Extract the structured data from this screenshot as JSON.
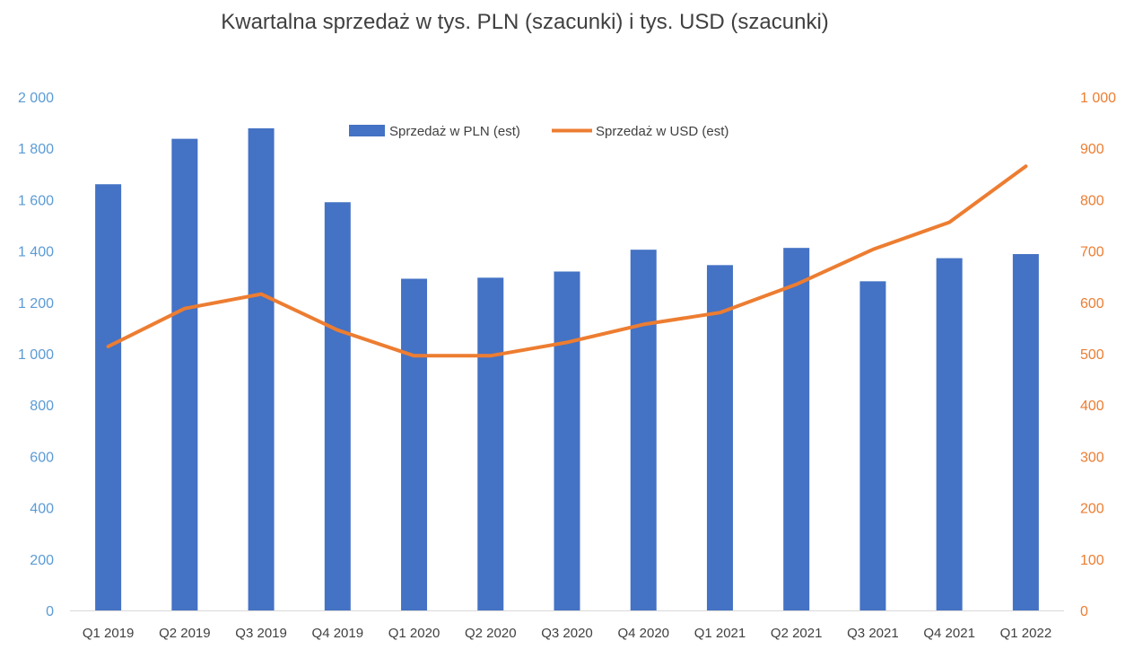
{
  "chart_data": {
    "type": "bar",
    "title": "Kwartalna sprzedaż w tys. PLN (szacunki) i tys. USD (szacunki)",
    "categories": [
      "Q1 2019",
      "Q2 2019",
      "Q3 2019",
      "Q4 2019",
      "Q1 2020",
      "Q2 2020",
      "Q3 2020",
      "Q4 2020",
      "Q1 2021",
      "Q2 2021",
      "Q3 2021",
      "Q4 2021",
      "Q1 2022"
    ],
    "series": [
      {
        "name": "Sprzedaż w PLN (est)",
        "type": "bar",
        "axis": "left",
        "color": "#4472c4",
        "values": [
          1660,
          1837,
          1878,
          1590,
          1292,
          1296,
          1320,
          1405,
          1345,
          1412,
          1282,
          1372,
          1388
        ]
      },
      {
        "name": "Sprzedaż w USD (est)",
        "type": "line",
        "axis": "right",
        "color": "#ed7d31",
        "values": [
          514,
          588,
          616,
          546,
          496,
          496,
          522,
          557,
          580,
          635,
          703,
          756,
          865
        ]
      }
    ],
    "y_left": {
      "range": [
        0,
        2000
      ],
      "ticks": [
        0,
        200,
        400,
        600,
        800,
        1000,
        1200,
        1400,
        1600,
        1800,
        2000
      ],
      "tick_labels": [
        "0",
        "200",
        "400",
        "600",
        "800",
        "1 000",
        "1 200",
        "1 400",
        "1 600",
        "1 800",
        "2 000"
      ],
      "color": "#5b9bd5"
    },
    "y_right": {
      "range": [
        0,
        1000
      ],
      "ticks": [
        0,
        100,
        200,
        300,
        400,
        500,
        600,
        700,
        800,
        900,
        1000
      ],
      "tick_labels": [
        "0",
        "100",
        "200",
        "300",
        "400",
        "500",
        "600",
        "700",
        "800",
        "900",
        "1 000"
      ],
      "color": "#ed7d31"
    },
    "grid": false,
    "legend_position": "top-center"
  }
}
